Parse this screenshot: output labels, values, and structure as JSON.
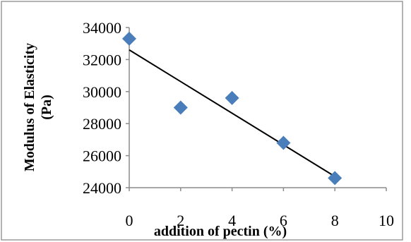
{
  "chart_data": {
    "type": "scatter",
    "title": "",
    "xlabel": "addition of pectin (%)",
    "ylabel_lines": [
      "Modulus of Elasticity",
      "(Pa)"
    ],
    "xlim": [
      0,
      10
    ],
    "ylim": [
      24000,
      34000
    ],
    "xticks": [
      0,
      2,
      4,
      6,
      8,
      10
    ],
    "yticks": [
      24000,
      26000,
      28000,
      30000,
      32000,
      34000
    ],
    "grid": false,
    "legend": "none",
    "series": [
      {
        "marker": "diamond",
        "color": "#4a7ebb",
        "points": [
          {
            "x": 0,
            "y": 33300
          },
          {
            "x": 2,
            "y": 29000
          },
          {
            "x": 4,
            "y": 29600
          },
          {
            "x": 6,
            "y": 26800
          },
          {
            "x": 8,
            "y": 24600
          }
        ]
      }
    ],
    "trendline": {
      "type": "linear",
      "color": "#000000",
      "x_range": [
        0,
        8
      ],
      "y_start": 32600,
      "y_end": 24700
    }
  }
}
